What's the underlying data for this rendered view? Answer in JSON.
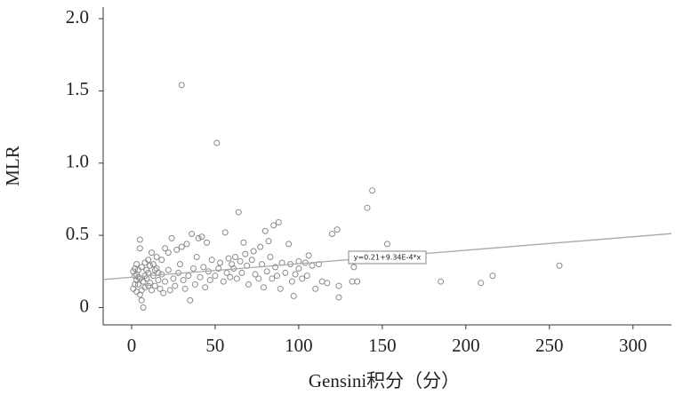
{
  "chart_data": {
    "type": "scatter",
    "x_label": "Gensini积分（分）",
    "y_label": "MLR",
    "annotation": "y=0.21+9.34E-4*x",
    "fit": {
      "intercept": 0.21,
      "slope": 0.000934,
      "color": "#a8a8a8"
    },
    "color": "#8a8a8a",
    "grid": false,
    "xlim": [
      -17,
      323
    ],
    "ylim": [
      -0.12,
      2.08
    ],
    "xticks": [
      0,
      50,
      100,
      150,
      200,
      250,
      300
    ],
    "yticks": [
      0,
      0.5,
      {
        "value": 1,
        "label": "1.0"
      },
      1.5,
      {
        "value": 2,
        "label": "2.0"
      }
    ],
    "x": [
      30,
      51,
      64,
      144,
      141,
      88,
      123,
      120,
      56,
      153,
      256,
      216,
      209,
      185,
      135,
      132,
      133,
      124,
      124,
      114,
      117,
      110,
      108,
      100,
      104,
      100,
      95,
      94,
      85,
      80,
      82,
      77,
      73,
      67,
      68,
      62,
      60,
      58,
      48,
      42,
      45,
      36,
      40,
      33,
      30,
      27,
      24,
      22,
      20,
      5,
      5,
      12,
      15,
      18,
      10,
      8,
      3,
      2,
      1,
      2,
      3,
      4,
      1,
      3,
      5,
      6,
      7,
      8,
      9,
      10,
      11,
      12,
      13,
      14,
      15,
      16,
      17,
      18,
      19,
      20,
      22,
      23,
      25,
      26,
      28,
      29,
      31,
      32,
      34,
      35,
      37,
      38,
      39,
      41,
      43,
      44,
      46,
      47,
      50,
      52,
      53,
      55,
      57,
      59,
      61,
      63,
      65,
      66,
      69,
      70,
      72,
      74,
      76,
      78,
      79,
      81,
      83,
      84,
      86,
      87,
      89,
      90,
      92,
      96,
      97,
      98,
      102,
      105,
      106,
      112,
      4,
      6,
      7,
      2,
      9,
      11,
      6,
      3,
      5,
      8,
      13,
      14,
      16,
      10,
      4
    ],
    "y": [
      1.54,
      1.14,
      0.66,
      0.81,
      0.69,
      0.59,
      0.54,
      0.51,
      0.52,
      0.44,
      0.29,
      0.22,
      0.17,
      0.18,
      0.18,
      0.18,
      0.28,
      0.07,
      0.15,
      0.18,
      0.17,
      0.13,
      0.29,
      0.32,
      0.31,
      0.27,
      0.3,
      0.44,
      0.57,
      0.53,
      0.46,
      0.42,
      0.39,
      0.45,
      0.37,
      0.35,
      0.3,
      0.34,
      0.33,
      0.49,
      0.45,
      0.51,
      0.48,
      0.44,
      0.42,
      0.4,
      0.48,
      0.38,
      0.41,
      0.47,
      0.41,
      0.38,
      0.35,
      0.33,
      0.33,
      0.31,
      0.3,
      0.27,
      0.25,
      0.22,
      0.19,
      0.16,
      0.13,
      0.11,
      0.09,
      0.05,
      0.0,
      0.14,
      0.2,
      0.24,
      0.17,
      0.12,
      0.22,
      0.15,
      0.27,
      0.19,
      0.13,
      0.23,
      0.1,
      0.18,
      0.26,
      0.12,
      0.2,
      0.15,
      0.24,
      0.3,
      0.19,
      0.13,
      0.22,
      0.05,
      0.27,
      0.16,
      0.35,
      0.21,
      0.28,
      0.14,
      0.25,
      0.19,
      0.22,
      0.27,
      0.31,
      0.18,
      0.24,
      0.21,
      0.27,
      0.2,
      0.32,
      0.24,
      0.29,
      0.16,
      0.33,
      0.23,
      0.2,
      0.3,
      0.14,
      0.25,
      0.35,
      0.2,
      0.28,
      0.22,
      0.13,
      0.31,
      0.24,
      0.18,
      0.08,
      0.23,
      0.2,
      0.22,
      0.36,
      0.3,
      0.21,
      0.28,
      0.18,
      0.16,
      0.26,
      0.29,
      0.12,
      0.23,
      0.2,
      0.22,
      0.3,
      0.26,
      0.24,
      0.15,
      0.26
    ]
  }
}
